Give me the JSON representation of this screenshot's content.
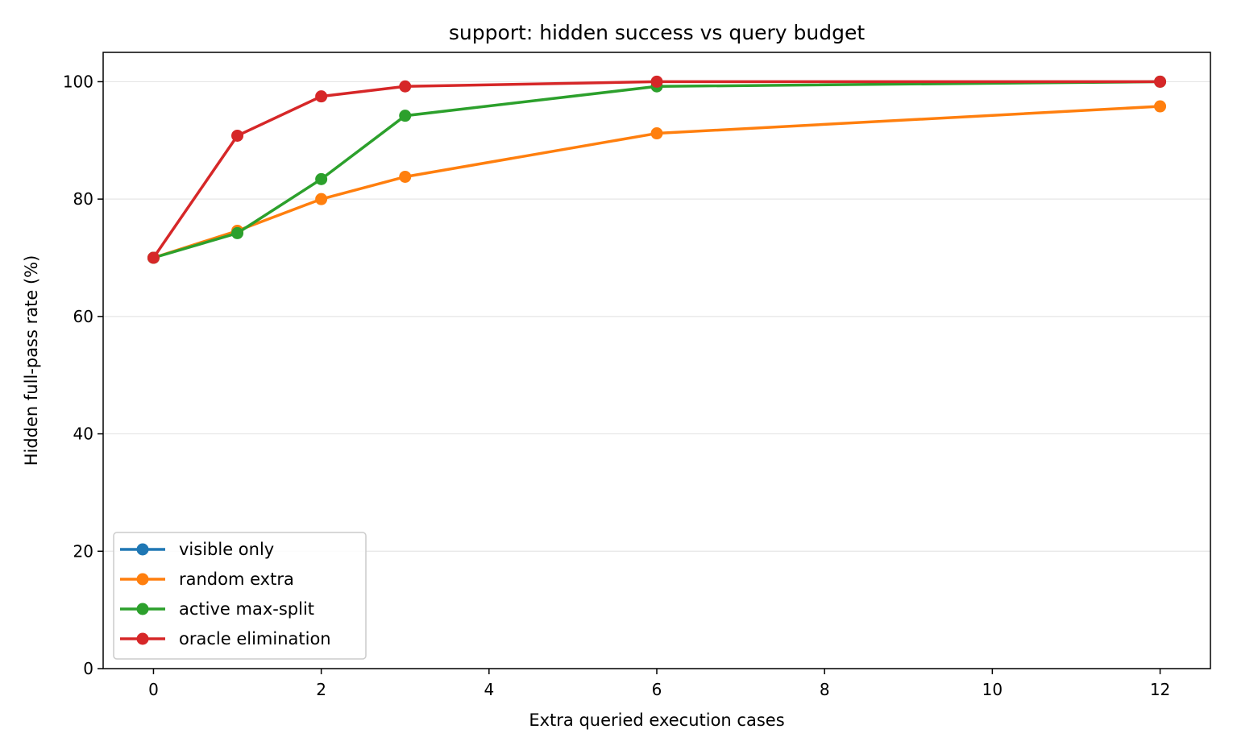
{
  "chart_data": {
    "type": "line",
    "title": "support: hidden success vs query budget",
    "xlabel": "Extra queried execution cases",
    "ylabel": "Hidden full-pass rate (%)",
    "xlim": [
      -0.6,
      12.6
    ],
    "ylim": [
      0,
      105
    ],
    "xticks": [
      0,
      2,
      4,
      6,
      8,
      10,
      12
    ],
    "yticks": [
      0,
      20,
      40,
      60,
      80,
      100
    ],
    "grid": "horizontal",
    "legend_position": "lower-left",
    "series": [
      {
        "name": "visible only",
        "color": "#1f77b4",
        "x": [
          0
        ],
        "y": [
          70
        ]
      },
      {
        "name": "random extra",
        "color": "#ff7f0e",
        "x": [
          0,
          1,
          2,
          3,
          6,
          12
        ],
        "y": [
          70,
          74.6,
          80,
          83.8,
          91.2,
          95.8
        ]
      },
      {
        "name": "active max-split",
        "color": "#2ca02c",
        "x": [
          0,
          1,
          2,
          3,
          6,
          12
        ],
        "y": [
          70,
          74.2,
          83.4,
          94.2,
          99.2,
          100
        ]
      },
      {
        "name": "oracle elimination",
        "color": "#d62728",
        "x": [
          0,
          1,
          2,
          3,
          6,
          12
        ],
        "y": [
          70,
          90.8,
          97.5,
          99.2,
          100,
          100
        ]
      }
    ]
  }
}
